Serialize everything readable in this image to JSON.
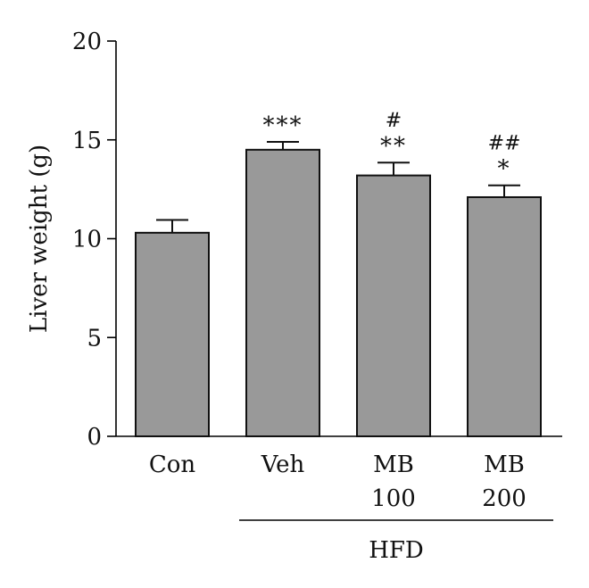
{
  "chart_data": {
    "type": "bar",
    "ylabel": "Liver weight (g)",
    "xlabel": "",
    "ylim": [
      0,
      20
    ],
    "yticks": [
      "0",
      "5",
      "10",
      "15",
      "20"
    ],
    "grid": false,
    "bar_color": "#999999",
    "categories": [
      {
        "line1": "Con",
        "line2": ""
      },
      {
        "line1": "Veh",
        "line2": ""
      },
      {
        "line1": "MB",
        "line2": "100"
      },
      {
        "line1": "MB",
        "line2": "200"
      }
    ],
    "values": [
      10.3,
      14.5,
      13.2,
      12.1
    ],
    "errors": [
      0.65,
      0.4,
      0.65,
      0.6
    ],
    "significance": [
      {
        "top": "",
        "bottom": ""
      },
      {
        "top": "",
        "bottom": "***"
      },
      {
        "top": "#",
        "bottom": "**"
      },
      {
        "top": "##",
        "bottom": "*"
      }
    ],
    "group_label": "HFD"
  }
}
